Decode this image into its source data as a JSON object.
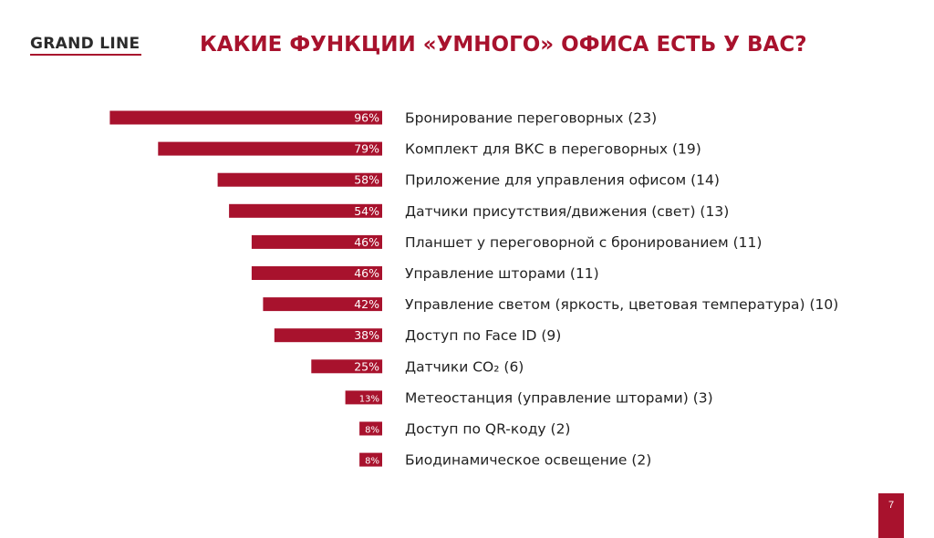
{
  "logo": {
    "text": "GRAND LINE"
  },
  "title": "КАКИЕ ФУНКЦИИ «УМНОГО» ОФИСА ЕСТЬ У ВАС?",
  "page_number": "7",
  "colors": {
    "accent": "#a8122d",
    "text": "#222222",
    "bar_label": "#ffffff"
  },
  "chart_data": {
    "type": "bar",
    "orientation": "horizontal",
    "title": "",
    "xlabel": "",
    "ylabel": "",
    "xlim": [
      0,
      100
    ],
    "grid": false,
    "legend": "none",
    "categories": [
      "Бронирование переговорных (23)",
      "Комплект для ВКС в переговорных (19)",
      "Приложение для управления офисом (14)",
      "Датчики присутствия/движения (свет) (13)",
      "Планшет у переговорной с бронированием (11)",
      "Управление шторами (11)",
      "Управление светом (яркость, цветовая температура) (10)",
      "Доступ по Face ID (9)",
      "Датчики CO₂ (6)",
      "Метеостанция (управление шторами) (3)",
      "Доступ по QR-коду (2)",
      "Биодинамическое освещение (2)"
    ],
    "values": [
      96,
      79,
      58,
      54,
      46,
      46,
      42,
      38,
      25,
      13,
      8,
      8
    ],
    "data_labels": [
      "96%",
      "79%",
      "58%",
      "54%",
      "46%",
      "46%",
      "42%",
      "38%",
      "25%",
      "13%",
      "8%",
      "8%"
    ]
  }
}
